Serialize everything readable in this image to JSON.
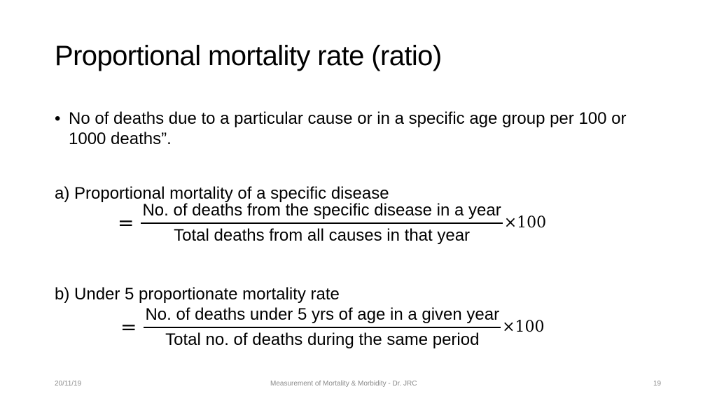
{
  "slide": {
    "title": "Proportional mortality rate (ratio)",
    "bullet": {
      "marker": "•",
      "text": "No of deaths due to a particular cause or in a specific age group per 100 or 1000 deaths”."
    },
    "section_a": {
      "heading": "a) Proportional mortality of a specific disease",
      "equals": "=",
      "numerator": "No. of deaths from the specific disease in a year",
      "denominator": "Total deaths from all causes in that year",
      "multiplier": "×100"
    },
    "section_b": {
      "heading": "b) Under 5 proportionate mortality rate",
      "equals": "=",
      "numerator": "No. of deaths under 5 yrs of age in a given year",
      "denominator": "Total no. of deaths during the same period",
      "multiplier": "×100"
    }
  },
  "footer": {
    "date": "20/11/19",
    "center": "Measurement of Mortality & Morbidity - Dr. JRC",
    "page_number": "19"
  }
}
